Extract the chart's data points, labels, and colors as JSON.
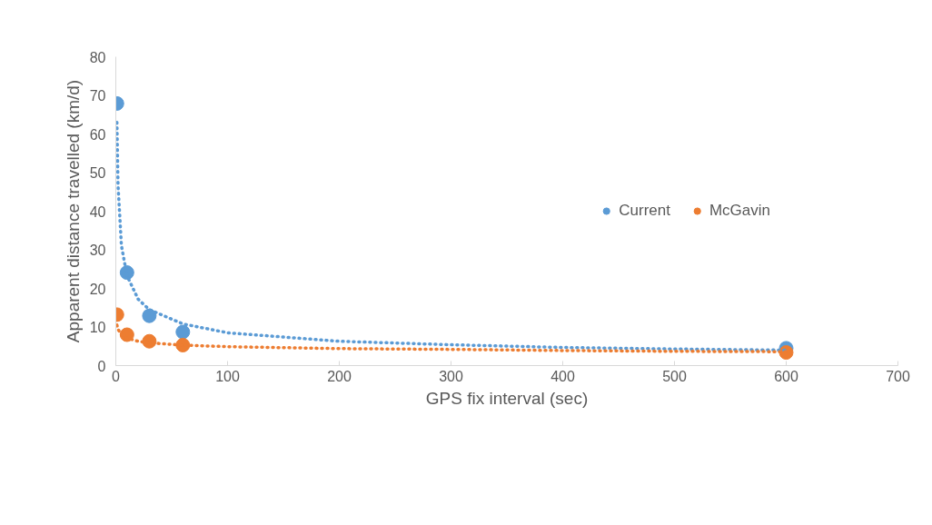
{
  "chart_data": {
    "type": "scatter",
    "xlabel": "GPS fix interval (sec)",
    "ylabel": "Apparent distance travelled (km/d)",
    "xlim": [
      0,
      700
    ],
    "xticks": [
      0,
      100,
      200,
      300,
      400,
      500,
      600,
      700
    ],
    "ylim": [
      0,
      80
    ],
    "yticks": [
      0,
      10,
      20,
      30,
      40,
      50,
      60,
      70,
      80
    ],
    "grid": false,
    "legend": "right",
    "series": [
      {
        "name": "Current",
        "marker": "circle",
        "color": "#5b9bd5",
        "x": [
          1,
          10,
          30,
          60,
          600
        ],
        "values": [
          67.9,
          24.1,
          12.9,
          8.7,
          4.5
        ]
      },
      {
        "name": "McGavin",
        "marker": "circle",
        "color": "#ed7d31",
        "x": [
          1,
          10,
          30,
          60,
          600
        ],
        "values": [
          13.2,
          8.0,
          6.3,
          5.3,
          3.4
        ]
      },
      {
        "type": "line",
        "line_style": "dotted",
        "marker": "none",
        "color": "#5b9bd5",
        "x": [
          1,
          2,
          5,
          10,
          20,
          30,
          60,
          100,
          200,
          300,
          400,
          500,
          600
        ],
        "values": [
          63,
          46.7,
          31.1,
          23.3,
          17.2,
          14.5,
          10.8,
          8.5,
          6.3,
          5.4,
          4.7,
          4.3,
          4.0
        ]
      },
      {
        "type": "line",
        "line_style": "dotted",
        "marker": "none",
        "color": "#ed7d31",
        "x": [
          1,
          2,
          5,
          10,
          20,
          30,
          60,
          100,
          200,
          300,
          400,
          500,
          600
        ],
        "values": [
          10.5,
          9.4,
          8.0,
          7.1,
          6.3,
          5.9,
          5.3,
          4.9,
          4.4,
          4.2,
          3.9,
          3.7,
          3.6
        ]
      }
    ]
  }
}
